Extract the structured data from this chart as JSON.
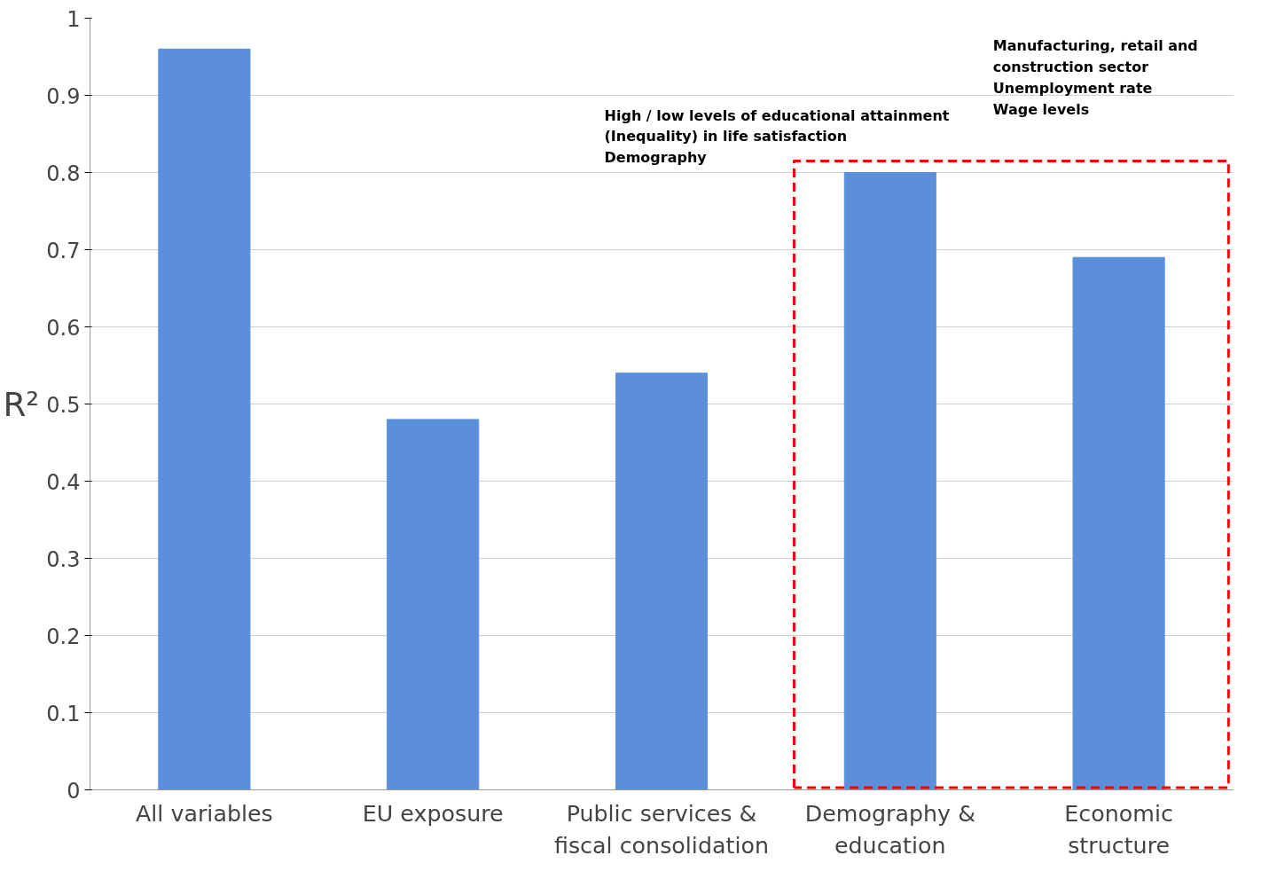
{
  "chart_data": {
    "type": "bar",
    "categories": [
      "All variables",
      "EU exposure",
      "Public services & fiscal consolidation",
      "Demography & education",
      "Economic structure"
    ],
    "values": [
      0.96,
      0.48,
      0.54,
      0.8,
      0.69
    ],
    "color": "#5b8fd9",
    "ylabel": "R²",
    "ylim": [
      0,
      1
    ],
    "yticks": [
      0,
      0.1,
      0.2,
      0.3,
      0.4,
      0.5,
      0.6,
      0.7,
      0.8,
      0.9,
      1
    ],
    "grid": "y",
    "annotations": [
      "High / low levels of educational attainment\n(Inequality) in life satisfaction\nDemography",
      "Manufacturing, retail and\nconstruction sector\nUnemployment rate\nWage levels"
    ]
  }
}
